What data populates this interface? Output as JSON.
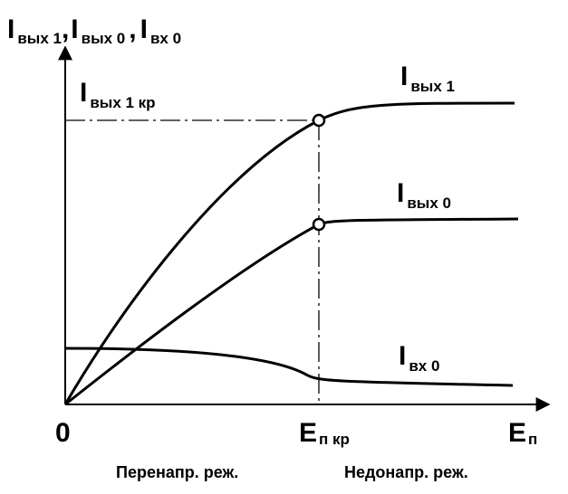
{
  "y_axis_label": {
    "parts": [
      {
        "symbol": "I",
        "subscript": "вых 1"
      },
      {
        "symbol": "I",
        "subscript": "вых 0"
      },
      {
        "symbol": "I",
        "subscript": "вх 0"
      }
    ],
    "separator": ","
  },
  "curve_labels": {
    "critical": {
      "symbol": "I",
      "subscript": "вых 1 кр"
    },
    "out1": {
      "symbol": "I",
      "subscript": "вых 1"
    },
    "out0": {
      "symbol": "I",
      "subscript": "вых 0"
    },
    "in0": {
      "symbol": "I",
      "subscript": "вх 0"
    }
  },
  "x_axis": {
    "origin": "0",
    "critical": {
      "symbol": "E",
      "subscript": "п кр"
    },
    "label": {
      "symbol": "E",
      "subscript": "п"
    }
  },
  "modes": {
    "left": "Перенапр. реж.",
    "right": "Недонапр. реж."
  }
}
